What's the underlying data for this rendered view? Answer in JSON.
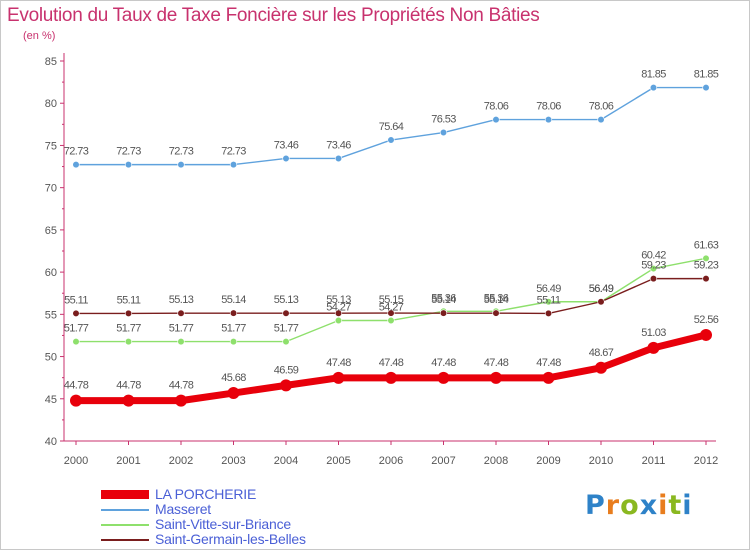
{
  "title": "Evolution du Taux de Taxe Foncière sur les Propriétés Non Bâties",
  "subtitle": "(en %)",
  "logo": {
    "text": "Proxiti",
    "letters": [
      "P",
      "r",
      "o",
      "x",
      "i",
      "t",
      "i"
    ],
    "colors": [
      "#2e82c8",
      "#e87d1e",
      "#8ab820",
      "#2e82c8",
      "#e87d1e",
      "#8ab820",
      "#2e82c8"
    ]
  },
  "chart_data": {
    "type": "line",
    "title": "Evolution du Taux de Taxe Foncière sur les Propriétés Non Bâties",
    "ylabel": "(en %)",
    "xlabel": "",
    "ylim": [
      40,
      85
    ],
    "yticks": [
      "40",
      "45",
      "50",
      "55",
      "60",
      "65",
      "70",
      "75",
      "80",
      "85"
    ],
    "grid": false,
    "legend_position": "bottom-left",
    "categories": [
      "2000",
      "2001",
      "2002",
      "2003",
      "2004",
      "2005",
      "2006",
      "2007",
      "2008",
      "2009",
      "2010",
      "2011",
      "2012"
    ],
    "series": [
      {
        "name": "LA PORCHERIE",
        "color": "#e8000b",
        "values": [
          44.78,
          44.78,
          44.78,
          45.68,
          46.59,
          47.48,
          47.48,
          47.48,
          47.48,
          47.48,
          48.67,
          51.03,
          52.56
        ],
        "labels": [
          "44.78",
          "44.78",
          "44.78",
          "45.68",
          "46.59",
          "47.48",
          "47.48",
          "47.48",
          "47.48",
          "47.48",
          "48.67",
          "51.03",
          "52.56"
        ]
      },
      {
        "name": "Masseret",
        "color": "#5fa2dd",
        "values": [
          72.73,
          72.73,
          72.73,
          72.73,
          73.46,
          73.46,
          75.64,
          76.53,
          78.06,
          78.06,
          78.06,
          81.85,
          81.85
        ],
        "labels": [
          "72.73",
          "72.73",
          "72.73",
          "72.73",
          "73.46",
          "73.46",
          "75.64",
          "76.53",
          "78.06",
          "78.06",
          "78.06",
          "81.85",
          "81.85"
        ]
      },
      {
        "name": "Saint-Vitte-sur-Briance",
        "color": "#8ee06c",
        "values": [
          51.77,
          51.77,
          51.77,
          51.77,
          51.77,
          54.27,
          54.27,
          55.36,
          55.36,
          56.49,
          56.49,
          60.42,
          61.63
        ],
        "labels": [
          "51.77",
          "51.77",
          "51.77",
          "51.77",
          "51.77",
          "54.27",
          "54.27",
          "55.36",
          "55.36",
          "56.49",
          "56.49",
          "60.42",
          "61.63"
        ]
      },
      {
        "name": "Saint-Germain-les-Belles",
        "color": "#7a1e1e",
        "values": [
          55.11,
          55.11,
          55.13,
          55.14,
          55.13,
          55.13,
          55.15,
          55.14,
          55.14,
          55.11,
          56.49,
          59.23,
          59.23
        ],
        "labels": [
          "55.11",
          "55.11",
          "55.13",
          "55.14",
          "55.13",
          "55.13",
          "55.15",
          "55.14",
          "55.14",
          "55.11",
          "56.49",
          "59.23",
          "59.23"
        ]
      }
    ]
  }
}
